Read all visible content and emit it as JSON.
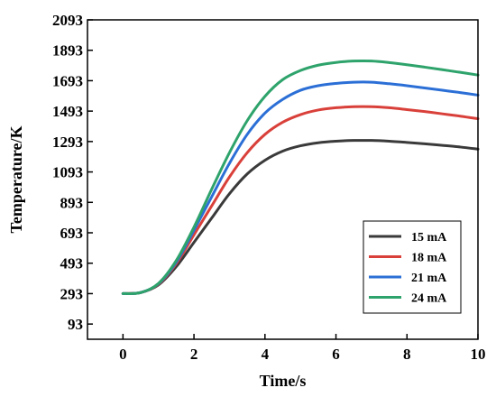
{
  "chart_data": {
    "type": "line",
    "xlabel": "Time/s",
    "ylabel": "Temperature/K",
    "xlim": [
      -1,
      10
    ],
    "ylim": [
      -7,
      2093
    ],
    "xticks": [
      0,
      2,
      4,
      6,
      8,
      10
    ],
    "xtick_labels": [
      "0",
      "2",
      "4",
      "6",
      "8",
      "10"
    ],
    "yticks": [
      93,
      293,
      493,
      693,
      893,
      1093,
      1293,
      1493,
      1693,
      1893,
      2093
    ],
    "ytick_labels": [
      "93",
      "293",
      "493",
      "693",
      "893",
      "1093",
      "1293",
      "1493",
      "1693",
      "1893",
      "2093"
    ],
    "legend_position": "bottom-right",
    "x": [
      0,
      0.5,
      1,
      1.5,
      2,
      2.5,
      3,
      3.5,
      4,
      4.5,
      5,
      5.5,
      6,
      6.5,
      7,
      7.5,
      8,
      8.5,
      9,
      9.5,
      10
    ],
    "series": [
      {
        "name": "15 mA",
        "color": "#3a3a3a",
        "values": [
          293,
          300,
          350,
          470,
          630,
          790,
          950,
          1080,
          1170,
          1230,
          1265,
          1285,
          1295,
          1300,
          1300,
          1295,
          1287,
          1278,
          1268,
          1257,
          1243
        ]
      },
      {
        "name": "18 mA",
        "color": "#d9403a",
        "values": [
          293,
          300,
          355,
          490,
          680,
          870,
          1060,
          1220,
          1340,
          1420,
          1470,
          1500,
          1515,
          1522,
          1522,
          1515,
          1503,
          1490,
          1475,
          1460,
          1443
        ]
      },
      {
        "name": "21 mA",
        "color": "#2b6fd6",
        "values": [
          293,
          300,
          358,
          500,
          710,
          930,
          1150,
          1340,
          1480,
          1570,
          1630,
          1660,
          1675,
          1683,
          1683,
          1673,
          1660,
          1645,
          1630,
          1615,
          1598
        ]
      },
      {
        "name": "24 mA",
        "color": "#2ea36b",
        "values": [
          293,
          300,
          360,
          510,
          730,
          980,
          1220,
          1430,
          1590,
          1700,
          1760,
          1795,
          1813,
          1822,
          1822,
          1812,
          1798,
          1782,
          1765,
          1748,
          1730
        ]
      }
    ]
  }
}
